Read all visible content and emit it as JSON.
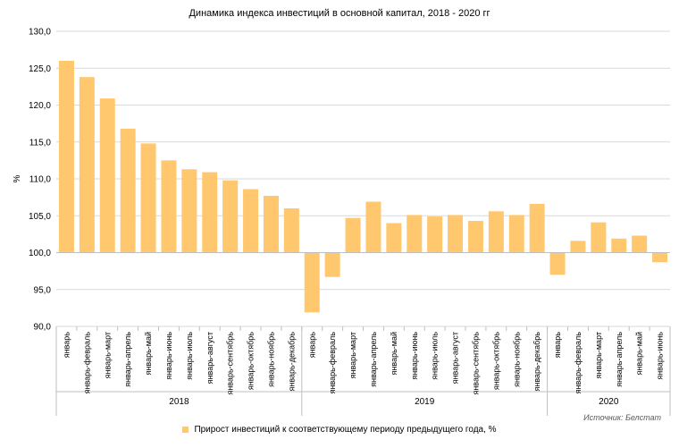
{
  "title": "Динамика индекса инвестиций в основной капитал, 2018 - 2020 гг",
  "source": "Источник: Белстат",
  "colors": {
    "bar": "#FFC86E",
    "grid": "#D9D9D9",
    "axis": "#BFBFBF"
  },
  "chart_data": {
    "type": "bar",
    "title": "Динамика индекса инвестиций в основной капитал, 2018 - 2020 гг",
    "xlabel": "",
    "ylabel": "%",
    "ylim": [
      90,
      130
    ],
    "yticks": [
      "90,0",
      "95,0",
      "100,0",
      "105,0",
      "110,0",
      "115,0",
      "120,0",
      "125,0",
      "130,0"
    ],
    "baseline": 100,
    "grid": true,
    "legend_position": "bottom",
    "series": [
      {
        "name": "Прирост инвестиций к соответствующему периоду предыдущего года, %",
        "values": [
          126.0,
          123.8,
          120.9,
          116.8,
          114.8,
          112.5,
          111.3,
          110.9,
          109.8,
          108.6,
          107.7,
          106.0,
          91.9,
          96.7,
          104.7,
          106.9,
          104.0,
          105.1,
          104.9,
          105.1,
          104.3,
          105.6,
          105.1,
          106.6,
          97.0,
          101.6,
          104.1,
          101.9,
          102.3,
          98.7
        ]
      }
    ],
    "categories": [
      "январь",
      "январь-февраль",
      "январь-март",
      "январь-апрель",
      "январь-май",
      "январь-июнь",
      "январь-июль",
      "январь-август",
      "январь-сентябрь",
      "январь-октябрь",
      "январь-ноябрь",
      "январь-декабрь",
      "январь",
      "январь-февраль",
      "январь-март",
      "январь-апрель",
      "январь-май",
      "январь-июнь",
      "январь-июль",
      "январь-август",
      "январь-сентябрь",
      "январь-октябрь",
      "январь-ноябрь",
      "январь-декабрь",
      "январь",
      "январь-февраль",
      "январь-март",
      "январь-апрель",
      "январь-май",
      "январь-июнь"
    ],
    "groups": [
      {
        "label": "2018",
        "count": 12
      },
      {
        "label": "2019",
        "count": 12
      },
      {
        "label": "2020",
        "count": 6
      }
    ]
  }
}
